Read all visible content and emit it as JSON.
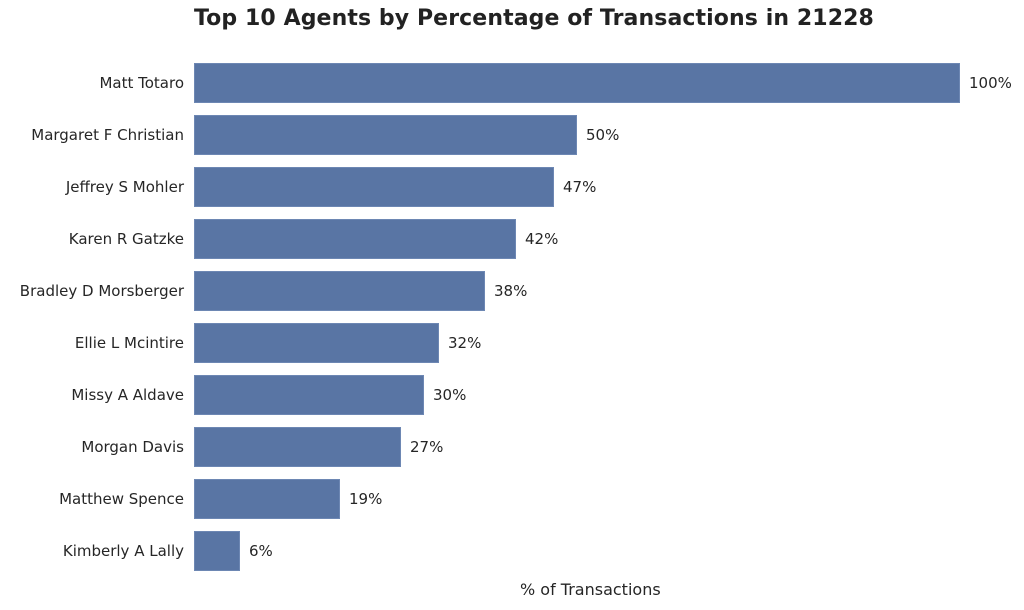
{
  "chart_data": {
    "type": "bar",
    "orientation": "horizontal",
    "title": "Top 10 Agents by Percentage of Transactions in 21228",
    "xlabel": "% of Transactions",
    "ylabel": "",
    "xlim": [
      0,
      100
    ],
    "grid": false,
    "legend": null,
    "bar_color": "#5975a4",
    "categories": [
      "Matt Totaro",
      "Margaret F Christian",
      "Jeffrey S Mohler",
      "Karen R Gatzke",
      "Bradley D Morsberger",
      "Ellie L Mcintire",
      "Missy A Aldave",
      "Morgan Davis",
      "Matthew Spence",
      "Kimberly A Lally"
    ],
    "values": [
      100,
      50,
      47,
      42,
      38,
      32,
      30,
      27,
      19,
      6
    ],
    "value_labels": [
      "100%",
      "50%",
      "47%",
      "42%",
      "38%",
      "32%",
      "30%",
      "27%",
      "19%",
      "6%"
    ]
  }
}
